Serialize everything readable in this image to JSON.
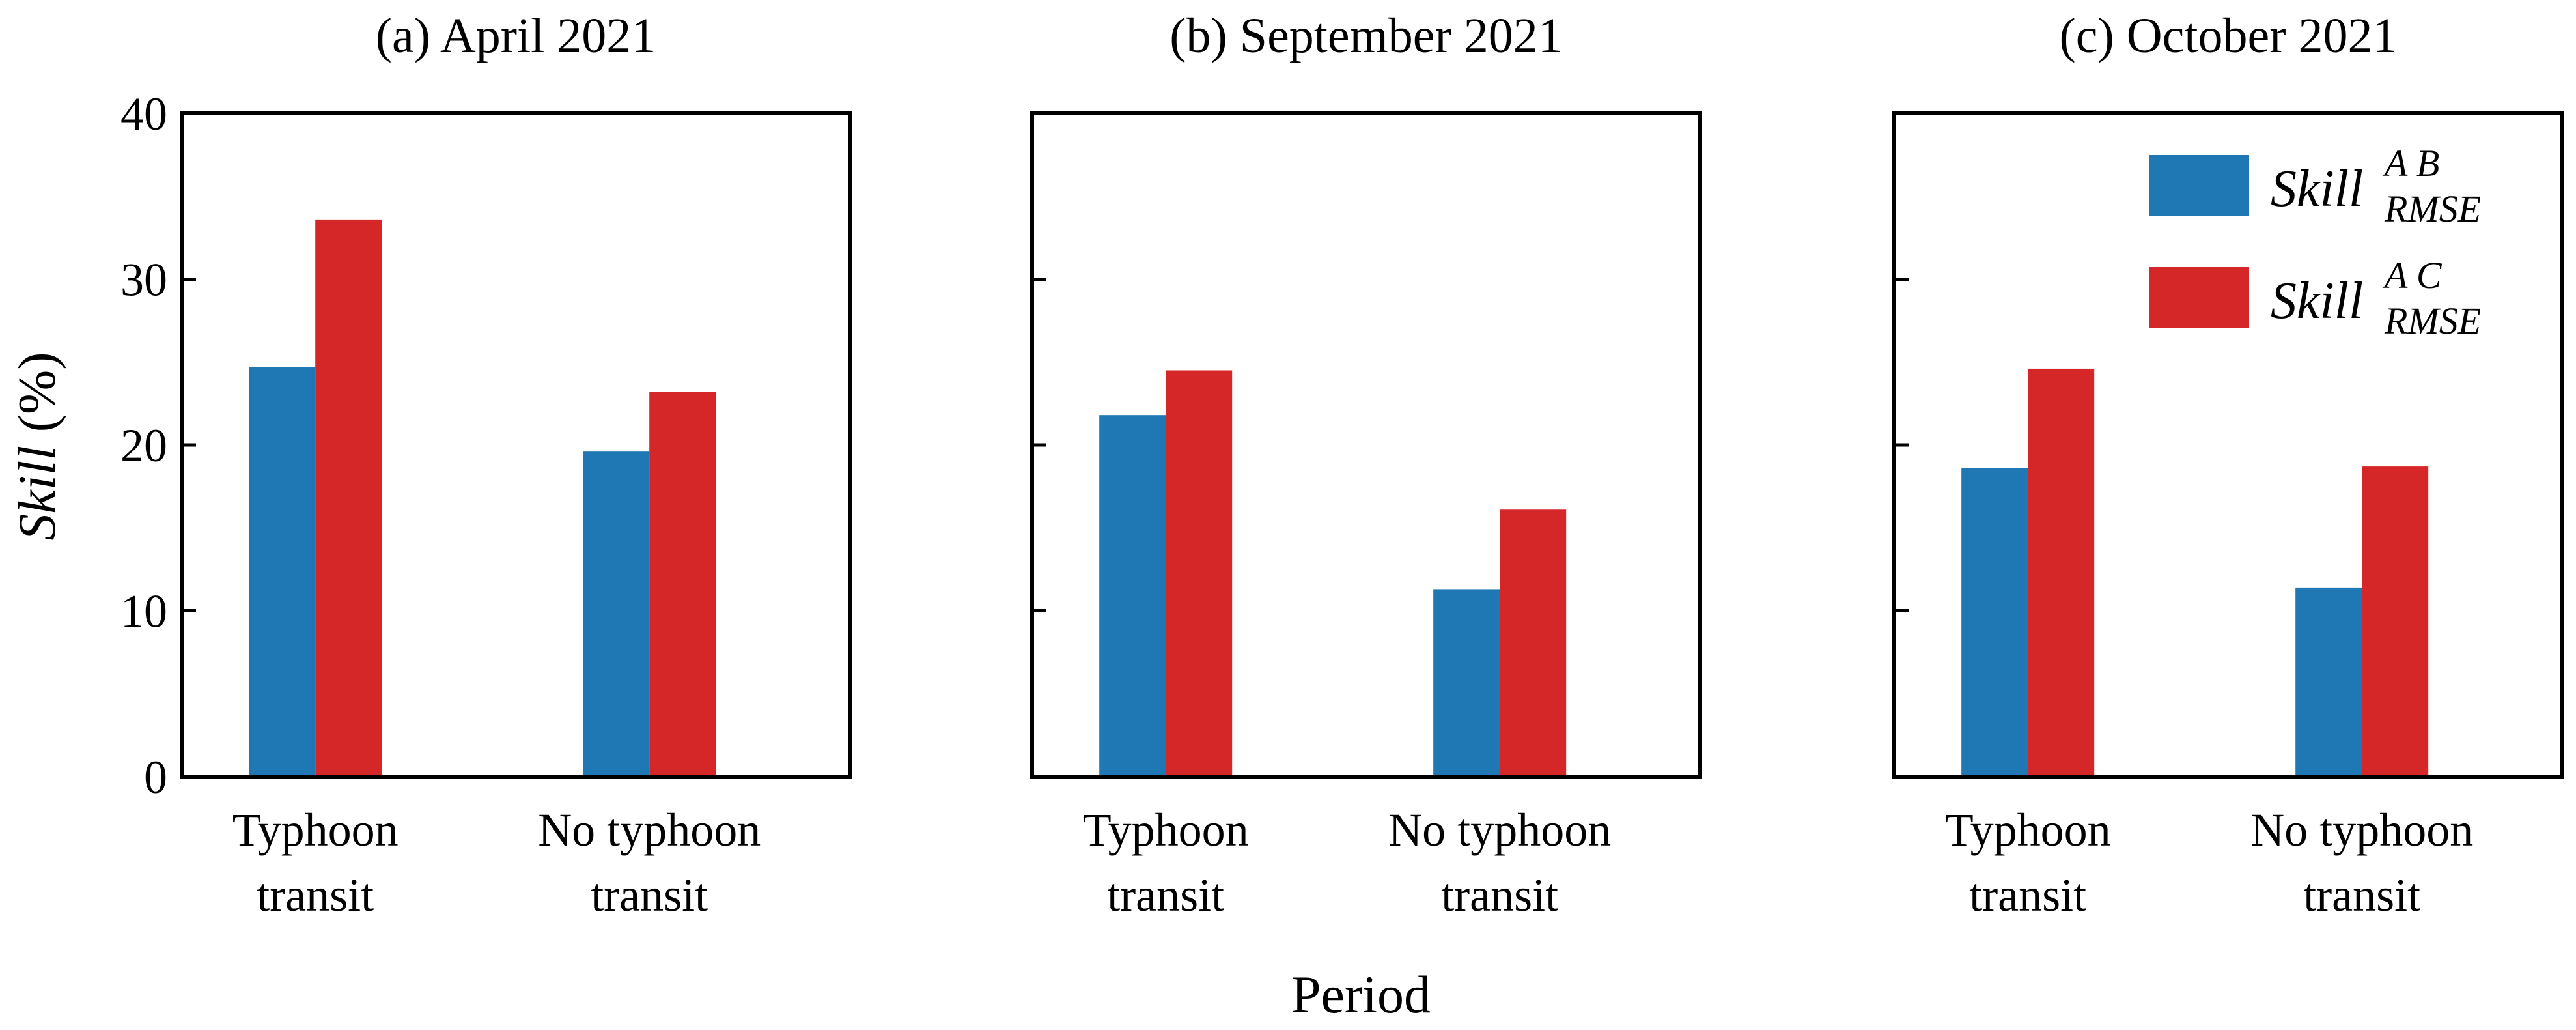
{
  "chart_data": {
    "type": "bar",
    "ylabel_italic": "Skill",
    "ylabel_rest": " (%)",
    "xlabel": "Period",
    "ylim": [
      0,
      40
    ],
    "yticks": [
      0,
      10,
      20,
      30,
      40
    ],
    "categories": [
      [
        "Typhoon",
        "transit"
      ],
      [
        "No typhoon",
        "transit"
      ]
    ],
    "series_colors": [
      "#1f77b4",
      "#d62728"
    ],
    "legend": {
      "placement": "top-right of panel (c)",
      "entries": [
        {
          "main": "Skill",
          "sup": "A B",
          "sub": "RMSE"
        },
        {
          "main": "Skill",
          "sup": "A C",
          "sub": "RMSE"
        }
      ]
    },
    "panels": [
      {
        "title": "(a) April 2021",
        "show_y_tick_labels": true,
        "series": [
          {
            "name": "Skill_RMSE^AB",
            "values": [
              24.7,
              19.6
            ]
          },
          {
            "name": "Skill_RMSE^AC",
            "values": [
              33.6,
              23.2
            ]
          }
        ]
      },
      {
        "title": "(b) September 2021",
        "show_y_tick_labels": false,
        "series": [
          {
            "name": "Skill_RMSE^AB",
            "values": [
              21.8,
              11.3
            ]
          },
          {
            "name": "Skill_RMSE^AC",
            "values": [
              24.5,
              16.1
            ]
          }
        ]
      },
      {
        "title": "(c) October 2021",
        "show_y_tick_labels": false,
        "series": [
          {
            "name": "Skill_RMSE^AB",
            "values": [
              18.6,
              11.4
            ]
          },
          {
            "name": "Skill_RMSE^AC",
            "values": [
              24.6,
              18.7
            ]
          }
        ]
      }
    ]
  }
}
